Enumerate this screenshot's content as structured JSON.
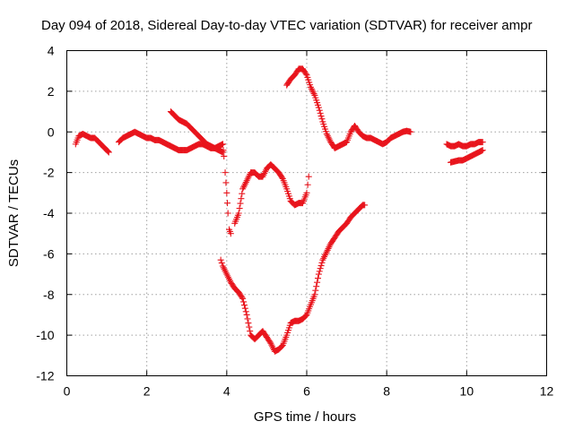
{
  "chart_data": {
    "type": "scatter",
    "title": "Day 094 of 2018, Sidereal Day-to-day VTEC variation (SDTVAR) for receiver ampr",
    "xlabel": "GPS time / hours",
    "ylabel": "SDTVAR / TECUs",
    "xlim": [
      0,
      12
    ],
    "ylim": [
      -12,
      4
    ],
    "xticks": [
      0,
      2,
      4,
      6,
      8,
      10,
      12
    ],
    "yticks": [
      -12,
      -10,
      -8,
      -6,
      -4,
      -2,
      0,
      2,
      4
    ],
    "grid": true,
    "marker": "plus",
    "series_color": "#e8141c",
    "segments": [
      {
        "x": [
          0.22,
          0.3,
          0.4,
          0.5,
          0.6,
          0.7,
          0.8,
          0.9,
          1.0,
          1.05
        ],
        "y": [
          -0.6,
          -0.2,
          -0.1,
          -0.2,
          -0.3,
          -0.3,
          -0.5,
          -0.7,
          -0.9,
          -1.0
        ]
      },
      {
        "x": [
          1.3,
          1.4,
          1.5,
          1.6,
          1.7,
          1.8,
          1.9,
          2.0,
          2.1,
          2.2,
          2.3,
          2.4,
          2.5,
          2.6,
          2.7,
          2.8,
          2.9,
          3.0,
          3.1,
          3.2,
          3.3,
          3.4,
          3.5,
          3.6,
          3.7,
          3.8,
          3.9
        ],
        "y": [
          -0.5,
          -0.3,
          -0.2,
          -0.1,
          0.0,
          -0.1,
          -0.2,
          -0.3,
          -0.3,
          -0.4,
          -0.4,
          -0.5,
          -0.6,
          -0.7,
          -0.8,
          -0.9,
          -0.9,
          -0.9,
          -0.8,
          -0.7,
          -0.6,
          -0.6,
          -0.7,
          -0.8,
          -0.8,
          -0.7,
          -0.6
        ]
      },
      {
        "x": [
          2.6,
          2.7,
          2.8,
          2.9,
          3.0,
          3.1,
          3.2,
          3.3,
          3.4,
          3.5,
          3.6,
          3.7,
          3.8,
          3.9
        ],
        "y": [
          1.0,
          0.8,
          0.6,
          0.5,
          0.4,
          0.2,
          0.0,
          -0.2,
          -0.4,
          -0.6,
          -0.7,
          -0.8,
          -0.9,
          -1.0
        ]
      },
      {
        "x": [
          3.9,
          3.93,
          3.96,
          4.0,
          4.03,
          4.06,
          4.1
        ],
        "y": [
          -0.6,
          -1.2,
          -2.0,
          -3.0,
          -4.0,
          -4.8,
          -5.0
        ]
      },
      {
        "x": [
          4.2,
          4.3,
          4.4,
          4.5,
          4.6,
          4.7,
          4.8,
          4.9,
          5.0,
          5.1,
          5.2,
          5.3,
          5.4,
          5.5,
          5.6,
          5.7,
          5.8,
          5.9,
          6.0,
          6.05
        ],
        "y": [
          -4.5,
          -4.0,
          -2.8,
          -2.4,
          -2.0,
          -2.0,
          -2.2,
          -2.2,
          -1.8,
          -1.6,
          -1.8,
          -2.0,
          -2.3,
          -2.8,
          -3.4,
          -3.6,
          -3.5,
          -3.5,
          -3.0,
          -2.2
        ]
      },
      {
        "x": [
          5.5,
          5.6,
          5.7,
          5.8,
          5.9,
          6.0,
          6.1,
          6.2,
          6.3,
          6.4,
          6.5,
          6.6,
          6.7,
          6.8,
          6.9,
          7.0,
          7.1,
          7.2,
          7.3,
          7.4,
          7.5,
          7.6,
          7.7,
          7.8,
          7.9,
          8.0,
          8.1,
          8.2,
          8.3,
          8.4,
          8.5,
          8.6
        ],
        "y": [
          2.3,
          2.6,
          2.8,
          3.1,
          3.1,
          2.8,
          2.2,
          1.8,
          1.2,
          0.5,
          -0.1,
          -0.5,
          -0.8,
          -0.7,
          -0.6,
          -0.5,
          0.0,
          0.3,
          0.0,
          -0.2,
          -0.3,
          -0.3,
          -0.4,
          -0.5,
          -0.6,
          -0.5,
          -0.3,
          -0.2,
          -0.1,
          0.0,
          0.05,
          0.0
        ]
      },
      {
        "x": [
          3.85,
          3.9,
          4.0,
          4.1,
          4.2,
          4.3,
          4.4,
          4.5,
          4.6,
          4.7,
          4.8,
          4.9,
          5.0,
          5.1,
          5.2,
          5.3,
          5.4,
          5.5,
          5.6,
          5.7,
          5.8,
          5.9,
          6.0,
          6.1,
          6.2,
          6.3,
          6.4,
          6.5,
          6.6,
          6.7,
          6.8,
          6.9,
          7.0,
          7.1,
          7.2,
          7.3,
          7.4,
          7.45
        ],
        "y": [
          -6.3,
          -6.6,
          -7.0,
          -7.4,
          -7.7,
          -7.9,
          -8.2,
          -9.0,
          -10.0,
          -10.2,
          -10.0,
          -9.8,
          -10.1,
          -10.4,
          -10.8,
          -10.7,
          -10.5,
          -10.0,
          -9.4,
          -9.3,
          -9.3,
          -9.2,
          -9.0,
          -8.5,
          -8.0,
          -7.0,
          -6.3,
          -5.9,
          -5.5,
          -5.2,
          -4.9,
          -4.7,
          -4.5,
          -4.2,
          -4.0,
          -3.8,
          -3.6,
          -3.6
        ]
      },
      {
        "x": [
          9.5,
          9.6,
          9.7,
          9.8,
          9.9,
          10.0,
          10.1,
          10.2,
          10.3,
          10.4
        ],
        "y": [
          -0.6,
          -0.7,
          -0.7,
          -0.6,
          -0.7,
          -0.7,
          -0.6,
          -0.6,
          -0.5,
          -0.5
        ]
      },
      {
        "x": [
          9.6,
          9.7,
          9.8,
          9.9,
          10.0,
          10.1,
          10.2,
          10.3,
          10.4
        ],
        "y": [
          -1.5,
          -1.45,
          -1.4,
          -1.4,
          -1.3,
          -1.2,
          -1.1,
          -1.0,
          -0.9
        ]
      }
    ]
  }
}
